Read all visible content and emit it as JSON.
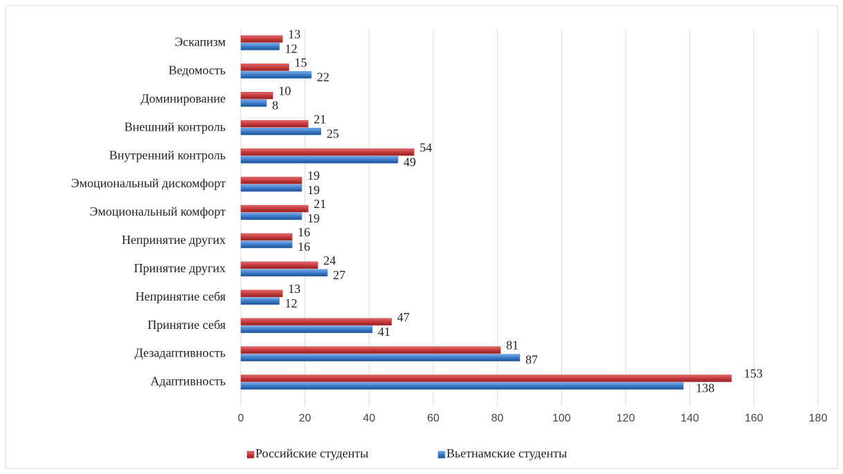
{
  "chart_data": {
    "type": "hbar",
    "categories": [
      "Эскапизм",
      "Ведомость",
      "Доминирование",
      "Внешний контроль",
      "Внутренний контроль",
      "Эмоциональный дискомфорт",
      "Эмоциональный комфорт",
      "Непринятие других",
      "Принятие других",
      "Непринятие себя",
      "Принятие себя",
      "Дезадаптивность",
      "Адаптивность"
    ],
    "series": [
      {
        "name": "Российские студенты",
        "color": "#c83a3c",
        "values": [
          13,
          15,
          10,
          21,
          54,
          19,
          21,
          16,
          24,
          13,
          47,
          81,
          153
        ]
      },
      {
        "name": "Вьетнамские студенты",
        "color": "#3b7bcb",
        "values": [
          12,
          22,
          8,
          25,
          49,
          19,
          19,
          16,
          27,
          12,
          41,
          87,
          138
        ]
      }
    ],
    "xlim": [
      0,
      180
    ],
    "xticks": [
      0,
      20,
      40,
      60,
      80,
      100,
      120,
      140,
      160,
      180
    ],
    "grid": true,
    "legend": "bottom"
  }
}
